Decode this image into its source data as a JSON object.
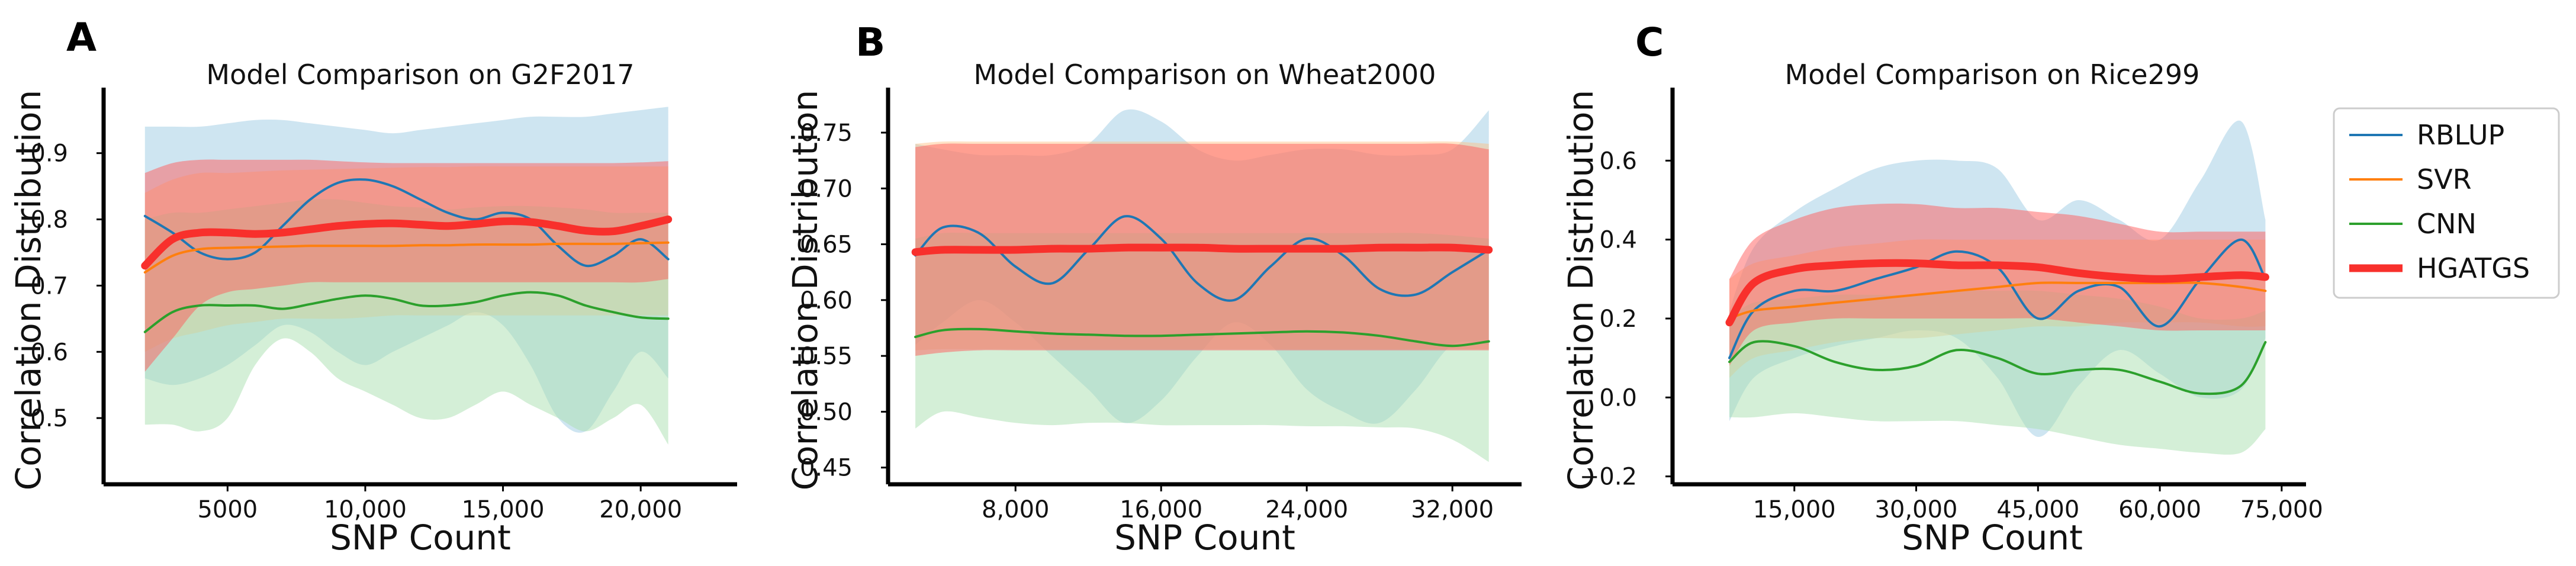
{
  "chart_data": [
    {
      "panel": "A",
      "type": "line",
      "title": "Model Comparison on G2F2017",
      "xlabel": "SNP Count",
      "ylabel": "Correlation Distribution",
      "xlim": [
        500,
        23500
      ],
      "ylim": [
        0.4,
        0.99
      ],
      "xticks": [
        5000,
        10000,
        15000,
        20000
      ],
      "xtick_labels": [
        "5000",
        "10,000",
        "15,000",
        "20,000"
      ],
      "yticks": [
        0.5,
        0.6,
        0.7,
        0.8,
        0.9
      ],
      "ytick_labels": [
        "0.5",
        "0.6",
        "0.7",
        "0.8",
        "0.9"
      ],
      "x": [
        2000,
        3000,
        4000,
        5000,
        6000,
        7000,
        8000,
        9000,
        10000,
        11000,
        12000,
        13000,
        14000,
        15000,
        16000,
        17000,
        18000,
        19000,
        20000,
        21000
      ],
      "series": [
        {
          "name": "RBLUP",
          "values": [
            0.805,
            0.78,
            0.75,
            0.74,
            0.75,
            0.79,
            0.83,
            0.855,
            0.86,
            0.85,
            0.83,
            0.81,
            0.8,
            0.81,
            0.8,
            0.76,
            0.73,
            0.745,
            0.77,
            0.74
          ],
          "lower": [
            0.56,
            0.55,
            0.56,
            0.58,
            0.61,
            0.64,
            0.63,
            0.6,
            0.58,
            0.6,
            0.62,
            0.64,
            0.66,
            0.64,
            0.58,
            0.5,
            0.48,
            0.54,
            0.6,
            0.56
          ],
          "upper": [
            0.94,
            0.94,
            0.94,
            0.945,
            0.95,
            0.95,
            0.945,
            0.94,
            0.935,
            0.93,
            0.935,
            0.94,
            0.945,
            0.95,
            0.955,
            0.955,
            0.955,
            0.96,
            0.965,
            0.97
          ]
        },
        {
          "name": "SVR",
          "values": [
            0.72,
            0.745,
            0.755,
            0.757,
            0.758,
            0.759,
            0.76,
            0.76,
            0.76,
            0.76,
            0.761,
            0.761,
            0.762,
            0.762,
            0.762,
            0.763,
            0.763,
            0.763,
            0.764,
            0.765
          ],
          "lower": [
            0.6,
            0.62,
            0.63,
            0.64,
            0.645,
            0.65,
            0.65,
            0.65,
            0.652,
            0.655,
            0.655,
            0.655,
            0.655,
            0.655,
            0.655,
            0.655,
            0.655,
            0.655,
            0.655,
            0.655
          ],
          "upper": [
            0.84,
            0.86,
            0.87,
            0.87,
            0.872,
            0.874,
            0.875,
            0.876,
            0.877,
            0.878,
            0.879,
            0.879,
            0.88,
            0.88,
            0.88,
            0.88,
            0.88,
            0.88,
            0.88,
            0.88
          ]
        },
        {
          "name": "CNN",
          "values": [
            0.63,
            0.66,
            0.67,
            0.67,
            0.67,
            0.665,
            0.672,
            0.68,
            0.685,
            0.68,
            0.67,
            0.67,
            0.675,
            0.685,
            0.69,
            0.685,
            0.67,
            0.66,
            0.652,
            0.65
          ],
          "lower": [
            0.49,
            0.49,
            0.48,
            0.5,
            0.58,
            0.62,
            0.6,
            0.56,
            0.54,
            0.52,
            0.5,
            0.5,
            0.52,
            0.54,
            0.52,
            0.5,
            0.48,
            0.5,
            0.52,
            0.46
          ],
          "upper": [
            0.8,
            0.81,
            0.81,
            0.815,
            0.82,
            0.825,
            0.83,
            0.83,
            0.825,
            0.82,
            0.818,
            0.815,
            0.818,
            0.82,
            0.82,
            0.818,
            0.815,
            0.81,
            0.81,
            0.81
          ]
        },
        {
          "name": "HGATGS",
          "values": [
            0.73,
            0.77,
            0.78,
            0.78,
            0.778,
            0.78,
            0.785,
            0.79,
            0.793,
            0.794,
            0.792,
            0.79,
            0.793,
            0.797,
            0.796,
            0.79,
            0.783,
            0.782,
            0.79,
            0.8
          ],
          "lower": [
            0.57,
            0.62,
            0.67,
            0.69,
            0.695,
            0.7,
            0.705,
            0.705,
            0.705,
            0.705,
            0.705,
            0.705,
            0.705,
            0.705,
            0.705,
            0.705,
            0.705,
            0.705,
            0.705,
            0.71
          ],
          "upper": [
            0.87,
            0.885,
            0.89,
            0.89,
            0.89,
            0.89,
            0.89,
            0.888,
            0.886,
            0.885,
            0.885,
            0.885,
            0.885,
            0.885,
            0.885,
            0.885,
            0.885,
            0.885,
            0.886,
            0.888
          ]
        }
      ]
    },
    {
      "panel": "B",
      "type": "line",
      "title": "Model Comparison on Wheat2000",
      "xlabel": "SNP Count",
      "ylabel": "Correlation Distribution",
      "xlim": [
        1000,
        35800
      ],
      "ylim": [
        0.435,
        0.785
      ],
      "xticks": [
        8000,
        16000,
        24000,
        32000
      ],
      "xtick_labels": [
        "8,000",
        "16,000",
        "24,000",
        "32,000"
      ],
      "yticks": [
        0.45,
        0.5,
        0.55,
        0.6,
        0.65,
        0.7,
        0.75
      ],
      "ytick_labels": [
        "0.45",
        "0.50",
        "0.55",
        "0.60",
        "0.65",
        "0.70",
        "0.75"
      ],
      "x": [
        2500,
        4000,
        6000,
        8000,
        10000,
        12000,
        14000,
        16000,
        18000,
        20000,
        22000,
        24000,
        26000,
        28000,
        30000,
        32000,
        34000
      ],
      "series": [
        {
          "name": "RBLUP",
          "values": [
            0.64,
            0.665,
            0.66,
            0.63,
            0.615,
            0.645,
            0.675,
            0.655,
            0.615,
            0.6,
            0.63,
            0.655,
            0.64,
            0.61,
            0.605,
            0.625,
            0.645
          ],
          "lower": [
            0.56,
            0.58,
            0.6,
            0.58,
            0.55,
            0.52,
            0.49,
            0.51,
            0.55,
            0.58,
            0.56,
            0.52,
            0.5,
            0.49,
            0.52,
            0.56,
            0.56
          ],
          "upper": [
            0.74,
            0.735,
            0.73,
            0.73,
            0.73,
            0.74,
            0.77,
            0.76,
            0.735,
            0.725,
            0.73,
            0.735,
            0.735,
            0.73,
            0.73,
            0.735,
            0.77
          ]
        },
        {
          "name": "SVR",
          "values": [
            0.645,
            0.646,
            0.646,
            0.647,
            0.647,
            0.647,
            0.647,
            0.647,
            0.647,
            0.647,
            0.647,
            0.647,
            0.647,
            0.647,
            0.647,
            0.647,
            0.646
          ],
          "lower": [
            0.555,
            0.556,
            0.556,
            0.556,
            0.556,
            0.556,
            0.556,
            0.556,
            0.556,
            0.556,
            0.556,
            0.556,
            0.556,
            0.556,
            0.556,
            0.556,
            0.556
          ],
          "upper": [
            0.74,
            0.742,
            0.742,
            0.742,
            0.742,
            0.742,
            0.742,
            0.742,
            0.742,
            0.742,
            0.742,
            0.742,
            0.742,
            0.742,
            0.742,
            0.742,
            0.74
          ]
        },
        {
          "name": "CNN",
          "values": [
            0.567,
            0.573,
            0.574,
            0.572,
            0.57,
            0.569,
            0.568,
            0.568,
            0.569,
            0.57,
            0.571,
            0.572,
            0.571,
            0.568,
            0.563,
            0.559,
            0.563
          ],
          "lower": [
            0.485,
            0.5,
            0.495,
            0.49,
            0.488,
            0.49,
            0.49,
            0.488,
            0.488,
            0.488,
            0.488,
            0.487,
            0.487,
            0.486,
            0.485,
            0.475,
            0.455
          ],
          "upper": [
            0.655,
            0.66,
            0.66,
            0.66,
            0.66,
            0.66,
            0.66,
            0.66,
            0.66,
            0.66,
            0.66,
            0.66,
            0.66,
            0.66,
            0.66,
            0.658,
            0.655
          ]
        },
        {
          "name": "HGATGS",
          "values": [
            0.643,
            0.645,
            0.645,
            0.645,
            0.646,
            0.646,
            0.647,
            0.647,
            0.647,
            0.646,
            0.646,
            0.646,
            0.646,
            0.647,
            0.647,
            0.647,
            0.645
          ],
          "lower": [
            0.55,
            0.553,
            0.555,
            0.555,
            0.555,
            0.555,
            0.555,
            0.555,
            0.555,
            0.555,
            0.555,
            0.555,
            0.555,
            0.555,
            0.555,
            0.555,
            0.555
          ],
          "upper": [
            0.737,
            0.74,
            0.74,
            0.74,
            0.74,
            0.74,
            0.74,
            0.74,
            0.74,
            0.74,
            0.74,
            0.74,
            0.74,
            0.74,
            0.74,
            0.74,
            0.735
          ]
        }
      ]
    },
    {
      "panel": "C",
      "type": "line",
      "title": "Model Comparison on Rice299",
      "xlabel": "SNP Count",
      "ylabel": "Correlation Distribution",
      "xlim": [
        0,
        78000
      ],
      "ylim": [
        -0.22,
        0.77
      ],
      "xticks": [
        15000,
        30000,
        45000,
        60000,
        75000
      ],
      "xtick_labels": [
        "15,000",
        "30,000",
        "45,000",
        "60,000",
        "75,000"
      ],
      "yticks": [
        -0.2,
        0,
        0.2,
        0.4,
        0.6
      ],
      "ytick_labels": [
        "−0.2",
        "0.0",
        "0.2",
        "0.4",
        "0.6"
      ],
      "x": [
        7000,
        10000,
        15000,
        20000,
        25000,
        30000,
        35000,
        40000,
        45000,
        50000,
        55000,
        60000,
        65000,
        70000,
        73000
      ],
      "series": [
        {
          "name": "RBLUP",
          "values": [
            0.1,
            0.22,
            0.27,
            0.27,
            0.3,
            0.33,
            0.37,
            0.33,
            0.2,
            0.27,
            0.28,
            0.18,
            0.3,
            0.4,
            0.3
          ],
          "lower": [
            -0.06,
            0.05,
            0.1,
            0.13,
            0.15,
            0.17,
            0.15,
            0.05,
            -0.1,
            0.03,
            0.12,
            0.06,
            0.0,
            0.02,
            0.15
          ],
          "upper": [
            0.22,
            0.38,
            0.47,
            0.53,
            0.58,
            0.6,
            0.6,
            0.58,
            0.45,
            0.5,
            0.45,
            0.4,
            0.55,
            0.7,
            0.45
          ]
        },
        {
          "name": "SVR",
          "values": [
            0.2,
            0.22,
            0.23,
            0.24,
            0.25,
            0.26,
            0.27,
            0.28,
            0.29,
            0.29,
            0.29,
            0.29,
            0.29,
            0.28,
            0.27
          ],
          "lower": [
            0.05,
            0.1,
            0.12,
            0.14,
            0.15,
            0.15,
            0.16,
            0.17,
            0.18,
            0.18,
            0.19,
            0.19,
            0.19,
            0.18,
            0.18
          ],
          "upper": [
            0.3,
            0.34,
            0.36,
            0.38,
            0.39,
            0.4,
            0.4,
            0.4,
            0.4,
            0.4,
            0.4,
            0.4,
            0.4,
            0.4,
            0.4
          ]
        },
        {
          "name": "CNN",
          "values": [
            0.09,
            0.14,
            0.13,
            0.09,
            0.07,
            0.08,
            0.12,
            0.1,
            0.06,
            0.07,
            0.07,
            0.04,
            0.01,
            0.03,
            0.14
          ],
          "lower": [
            -0.05,
            -0.05,
            -0.04,
            -0.05,
            -0.06,
            -0.06,
            -0.06,
            -0.07,
            -0.08,
            -0.1,
            -0.12,
            -0.13,
            -0.14,
            -0.14,
            -0.08
          ],
          "upper": [
            0.2,
            0.24,
            0.25,
            0.26,
            0.26,
            0.26,
            0.27,
            0.27,
            0.27,
            0.26,
            0.25,
            0.23,
            0.2,
            0.2,
            0.22
          ]
        },
        {
          "name": "HGATGS",
          "values": [
            0.19,
            0.29,
            0.325,
            0.335,
            0.34,
            0.34,
            0.335,
            0.335,
            0.33,
            0.315,
            0.305,
            0.3,
            0.305,
            0.31,
            0.305
          ],
          "lower": [
            0.08,
            0.17,
            0.19,
            0.2,
            0.2,
            0.2,
            0.2,
            0.2,
            0.2,
            0.19,
            0.18,
            0.17,
            0.17,
            0.17,
            0.17
          ],
          "upper": [
            0.3,
            0.4,
            0.45,
            0.48,
            0.49,
            0.49,
            0.48,
            0.48,
            0.47,
            0.46,
            0.44,
            0.42,
            0.42,
            0.42,
            0.42
          ]
        }
      ]
    }
  ],
  "colors": {
    "RBLUP": "#1f77b4",
    "SVR": "#ff7f0e",
    "CNN": "#2ca02c",
    "HGATGS": "#f8302c",
    "RBLUP_band": "#a6cfe6",
    "SVR_band": "#ffbe80",
    "CNN_band": "#a9e0b0",
    "HGATGS_band": "#ff5c5c"
  },
  "legend": {
    "position": "right",
    "items": [
      "RBLUP",
      "SVR",
      "CNN",
      "HGATGS"
    ]
  }
}
